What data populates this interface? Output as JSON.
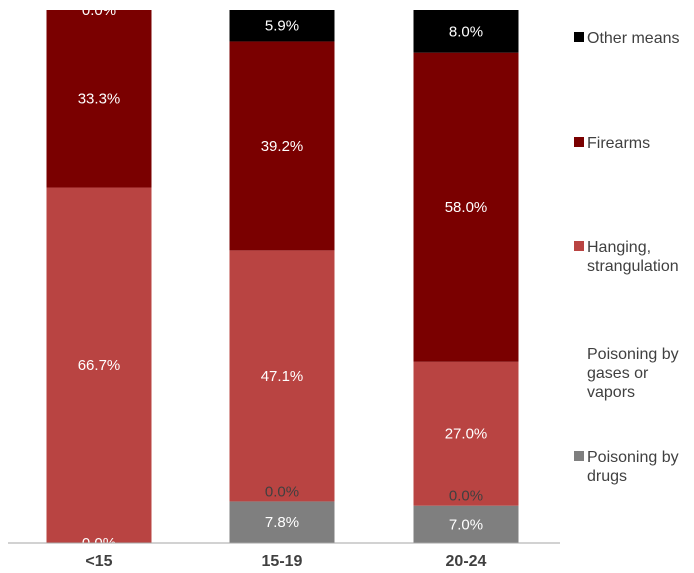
{
  "chart_data": {
    "type": "bar",
    "stacked": true,
    "percent_stacked": true,
    "categories": [
      "<15",
      "15-19",
      "20-24"
    ],
    "series": [
      {
        "name": "Poisoning by drugs",
        "color": "#7f7f7f",
        "values": [
          0.0,
          7.8,
          7.0
        ],
        "labels": [
          "0.0%",
          "7.8%",
          "7.0%"
        ]
      },
      {
        "name": "Poisoning by gases or vapors",
        "color": "#ffffff",
        "values": [
          0.0,
          0.0,
          0.0
        ],
        "labels": [
          "",
          "0.0%",
          "0.0%"
        ]
      },
      {
        "name": "Hanging, strangulation",
        "color": "#b94442",
        "values": [
          66.7,
          47.1,
          27.0
        ],
        "labels": [
          "66.7%",
          "47.1%",
          "27.0%"
        ]
      },
      {
        "name": "Firearms",
        "color": "#7a0000",
        "values": [
          33.3,
          39.2,
          58.0
        ],
        "labels": [
          "33.3%",
          "39.2%",
          "58.0%"
        ]
      },
      {
        "name": "Other means",
        "color": "#000000",
        "values": [
          0.0,
          5.9,
          8.0
        ],
        "labels": [
          "0.0%",
          "5.9%",
          "8.0%"
        ]
      }
    ],
    "legend_position": "right",
    "ylim": [
      0,
      100
    ],
    "grid": false
  }
}
